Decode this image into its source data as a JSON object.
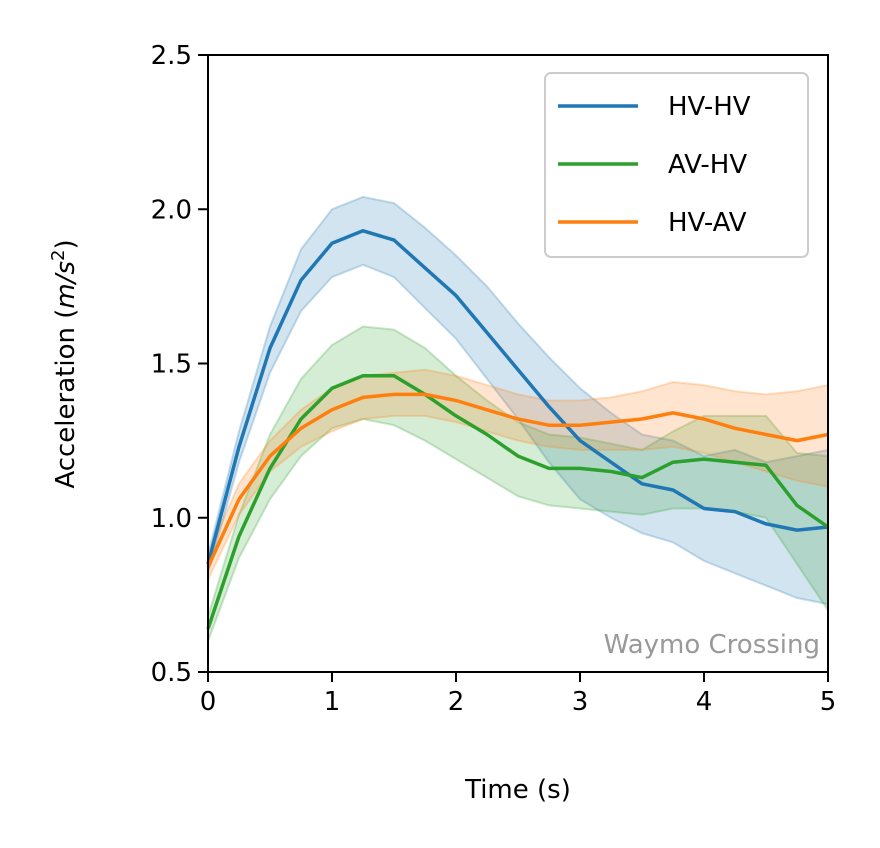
{
  "chart_data": {
    "type": "line",
    "title": "",
    "xlabel": "Time (s)",
    "ylabel": "Acceleration (m/s²)",
    "ylabel_parts": {
      "prefix": "Acceleration (",
      "unit": "m/s",
      "sup": "2",
      "suffix": ")"
    },
    "xlim": [
      0,
      5
    ],
    "ylim": [
      0.5,
      2.5
    ],
    "xticks": [
      "0",
      "1",
      "2",
      "3",
      "4",
      "5"
    ],
    "yticks": [
      "0.5",
      "1.0",
      "1.5",
      "2.0",
      "2.5"
    ],
    "grid": false,
    "legend_position": "top-right",
    "annotation": "Waymo Crossing",
    "annotation_color": "#999999",
    "x": [
      0,
      0.25,
      0.5,
      0.75,
      1.0,
      1.25,
      1.5,
      1.75,
      2.0,
      2.25,
      2.5,
      2.75,
      3.0,
      3.25,
      3.5,
      3.75,
      4.0,
      4.25,
      4.5,
      4.75,
      5.0
    ],
    "series": [
      {
        "name": "HV-HV",
        "color": "#1f77b4",
        "values": [
          0.85,
          1.23,
          1.55,
          1.77,
          1.89,
          1.93,
          1.9,
          1.81,
          1.72,
          1.6,
          1.48,
          1.36,
          1.25,
          1.18,
          1.11,
          1.09,
          1.03,
          1.02,
          0.98,
          0.96,
          0.97
        ],
        "lower": [
          0.82,
          1.18,
          1.47,
          1.67,
          1.78,
          1.82,
          1.78,
          1.68,
          1.58,
          1.45,
          1.32,
          1.18,
          1.06,
          1.0,
          0.95,
          0.92,
          0.86,
          0.82,
          0.78,
          0.74,
          0.72
        ],
        "upper": [
          0.88,
          1.28,
          1.62,
          1.87,
          2.0,
          2.04,
          2.02,
          1.94,
          1.85,
          1.75,
          1.63,
          1.52,
          1.42,
          1.34,
          1.27,
          1.25,
          1.2,
          1.22,
          1.18,
          1.2,
          1.22
        ]
      },
      {
        "name": "AV-HV",
        "color": "#2ca02c",
        "values": [
          0.64,
          0.94,
          1.16,
          1.32,
          1.42,
          1.46,
          1.46,
          1.4,
          1.33,
          1.27,
          1.2,
          1.16,
          1.16,
          1.15,
          1.13,
          1.18,
          1.19,
          1.18,
          1.17,
          1.04,
          0.97
        ],
        "lower": [
          0.6,
          0.87,
          1.06,
          1.2,
          1.29,
          1.32,
          1.3,
          1.25,
          1.19,
          1.13,
          1.07,
          1.04,
          1.03,
          1.02,
          1.01,
          1.03,
          1.03,
          1.02,
          1.0,
          0.85,
          0.7
        ],
        "upper": [
          0.68,
          1.01,
          1.27,
          1.45,
          1.56,
          1.62,
          1.61,
          1.55,
          1.46,
          1.38,
          1.31,
          1.27,
          1.26,
          1.24,
          1.22,
          1.28,
          1.33,
          1.33,
          1.33,
          1.21,
          1.2
        ]
      },
      {
        "name": "HV-AV",
        "color": "#ff7f0e",
        "values": [
          0.84,
          1.06,
          1.2,
          1.29,
          1.35,
          1.39,
          1.4,
          1.4,
          1.38,
          1.35,
          1.32,
          1.3,
          1.3,
          1.31,
          1.32,
          1.34,
          1.32,
          1.29,
          1.27,
          1.25,
          1.27
        ],
        "lower": [
          0.8,
          1.01,
          1.15,
          1.23,
          1.28,
          1.32,
          1.33,
          1.33,
          1.31,
          1.28,
          1.25,
          1.23,
          1.22,
          1.22,
          1.22,
          1.23,
          1.21,
          1.18,
          1.15,
          1.12,
          1.1
        ],
        "upper": [
          0.88,
          1.11,
          1.25,
          1.35,
          1.42,
          1.46,
          1.47,
          1.48,
          1.46,
          1.43,
          1.4,
          1.38,
          1.38,
          1.39,
          1.41,
          1.44,
          1.43,
          1.41,
          1.4,
          1.41,
          1.43
        ]
      }
    ]
  }
}
